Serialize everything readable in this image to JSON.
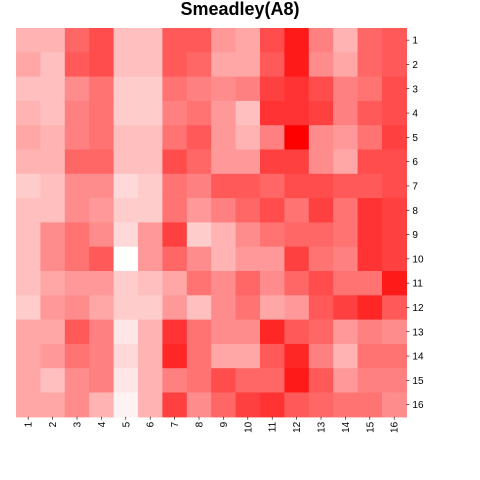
{
  "chart_data": {
    "type": "heatmap",
    "title": "Smeadley(A8)",
    "xlabel": "",
    "ylabel": "",
    "x_categories": [
      "1",
      "2",
      "3",
      "4",
      "5",
      "6",
      "7",
      "8",
      "9",
      "10",
      "11",
      "12",
      "13",
      "14",
      "15",
      "16"
    ],
    "y_categories": [
      "1",
      "2",
      "3",
      "4",
      "5",
      "6",
      "7",
      "8",
      "9",
      "10",
      "11",
      "12",
      "13",
      "14",
      "15",
      "16"
    ],
    "color_scale": {
      "low": "#ffffff",
      "high": "#ff0000"
    },
    "value_range": [
      0,
      1
    ],
    "grid": false,
    "legend": "none",
    "values": [
      [
        0.3,
        0.3,
        0.6,
        0.7,
        0.25,
        0.25,
        0.65,
        0.65,
        0.4,
        0.35,
        0.7,
        0.9,
        0.5,
        0.3,
        0.6,
        0.65
      ],
      [
        0.35,
        0.25,
        0.65,
        0.7,
        0.25,
        0.25,
        0.65,
        0.6,
        0.35,
        0.35,
        0.65,
        0.9,
        0.45,
        0.35,
        0.6,
        0.65
      ],
      [
        0.25,
        0.25,
        0.45,
        0.55,
        0.2,
        0.2,
        0.55,
        0.5,
        0.45,
        0.5,
        0.75,
        0.8,
        0.7,
        0.5,
        0.55,
        0.7
      ],
      [
        0.3,
        0.25,
        0.5,
        0.55,
        0.2,
        0.2,
        0.5,
        0.55,
        0.4,
        0.25,
        0.8,
        0.8,
        0.75,
        0.5,
        0.65,
        0.7
      ],
      [
        0.35,
        0.3,
        0.5,
        0.55,
        0.25,
        0.25,
        0.55,
        0.65,
        0.4,
        0.3,
        0.5,
        1.0,
        0.45,
        0.4,
        0.55,
        0.75
      ],
      [
        0.3,
        0.3,
        0.6,
        0.6,
        0.25,
        0.25,
        0.7,
        0.6,
        0.4,
        0.4,
        0.75,
        0.75,
        0.45,
        0.35,
        0.7,
        0.7
      ],
      [
        0.2,
        0.25,
        0.45,
        0.45,
        0.15,
        0.2,
        0.55,
        0.5,
        0.65,
        0.65,
        0.6,
        0.7,
        0.7,
        0.65,
        0.65,
        0.7
      ],
      [
        0.25,
        0.25,
        0.45,
        0.4,
        0.2,
        0.2,
        0.55,
        0.4,
        0.5,
        0.6,
        0.7,
        0.55,
        0.75,
        0.55,
        0.8,
        0.75
      ],
      [
        0.25,
        0.45,
        0.55,
        0.45,
        0.15,
        0.4,
        0.75,
        0.2,
        0.3,
        0.45,
        0.55,
        0.6,
        0.6,
        0.55,
        0.8,
        0.75
      ],
      [
        0.25,
        0.45,
        0.55,
        0.65,
        0.0,
        0.4,
        0.6,
        0.45,
        0.3,
        0.4,
        0.4,
        0.75,
        0.55,
        0.5,
        0.8,
        0.75
      ],
      [
        0.25,
        0.35,
        0.4,
        0.4,
        0.2,
        0.25,
        0.35,
        0.55,
        0.45,
        0.6,
        0.45,
        0.6,
        0.7,
        0.55,
        0.55,
        0.9
      ],
      [
        0.2,
        0.4,
        0.45,
        0.35,
        0.2,
        0.2,
        0.4,
        0.25,
        0.45,
        0.55,
        0.35,
        0.4,
        0.65,
        0.75,
        0.85,
        0.65
      ],
      [
        0.35,
        0.35,
        0.65,
        0.5,
        0.1,
        0.3,
        0.8,
        0.55,
        0.45,
        0.45,
        0.85,
        0.65,
        0.6,
        0.4,
        0.5,
        0.45
      ],
      [
        0.35,
        0.4,
        0.55,
        0.5,
        0.15,
        0.3,
        0.85,
        0.55,
        0.35,
        0.35,
        0.65,
        0.85,
        0.5,
        0.3,
        0.55,
        0.55
      ],
      [
        0.35,
        0.25,
        0.45,
        0.5,
        0.1,
        0.3,
        0.5,
        0.55,
        0.7,
        0.6,
        0.6,
        0.9,
        0.65,
        0.4,
        0.5,
        0.5
      ],
      [
        0.35,
        0.35,
        0.45,
        0.3,
        0.05,
        0.3,
        0.75,
        0.45,
        0.6,
        0.75,
        0.8,
        0.65,
        0.6,
        0.55,
        0.55,
        0.45
      ]
    ]
  }
}
